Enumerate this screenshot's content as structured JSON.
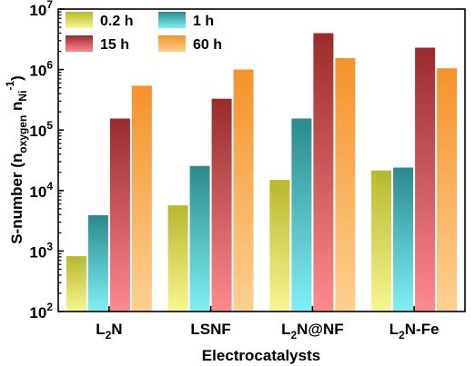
{
  "chart_data": {
    "type": "bar",
    "ylabel": "S-number (n_oxygen n_Ni^-1)",
    "ylabel_parts": {
      "prefix": "S-number (n",
      "sub1": "oxygen",
      "middle": " n",
      "sub2": "Ni",
      "sup": "-1",
      "suffix": ")"
    },
    "xlabel": "Electrocatalysts",
    "yscale": "log",
    "ylim": [
      100,
      10000000
    ],
    "y_ticks": [
      {
        "base": "10",
        "exp": "2"
      },
      {
        "base": "10",
        "exp": "3"
      },
      {
        "base": "10",
        "exp": "4"
      },
      {
        "base": "10",
        "exp": "5"
      },
      {
        "base": "10",
        "exp": "6"
      },
      {
        "base": "10",
        "exp": "7"
      }
    ],
    "categories": [
      {
        "name": "L2N",
        "base": "L",
        "sub": "2",
        "rest": "N"
      },
      {
        "name": "LSNF",
        "base": "LSNF",
        "sub": "",
        "rest": ""
      },
      {
        "name": "L2N@NF",
        "base": "L",
        "sub": "2",
        "rest": "N@NF"
      },
      {
        "name": "L2N-Fe",
        "base": "L",
        "sub": "2",
        "rest": "N-Fe"
      }
    ],
    "series": [
      {
        "name": "0.2 h",
        "color_top": "#b8b82c",
        "color_bottom": "#f7f791",
        "values": [
          820,
          5700,
          15000,
          21500
        ]
      },
      {
        "name": "1 h",
        "color_top": "#2a8a8c",
        "color_bottom": "#7ff1f5",
        "values": [
          3900,
          25500,
          155000,
          24000
        ]
      },
      {
        "name": "15 h",
        "color_top": "#9a2b2b",
        "color_bottom": "#ff8a8e",
        "values": [
          155000,
          330000,
          4000000,
          2300000
        ]
      },
      {
        "name": "60 h",
        "color_top": "#f5922a",
        "color_bottom": "#ffd090",
        "values": [
          540000,
          1000000,
          1550000,
          1050000
        ]
      }
    ],
    "legend_position": "top-left",
    "grid": false
  }
}
